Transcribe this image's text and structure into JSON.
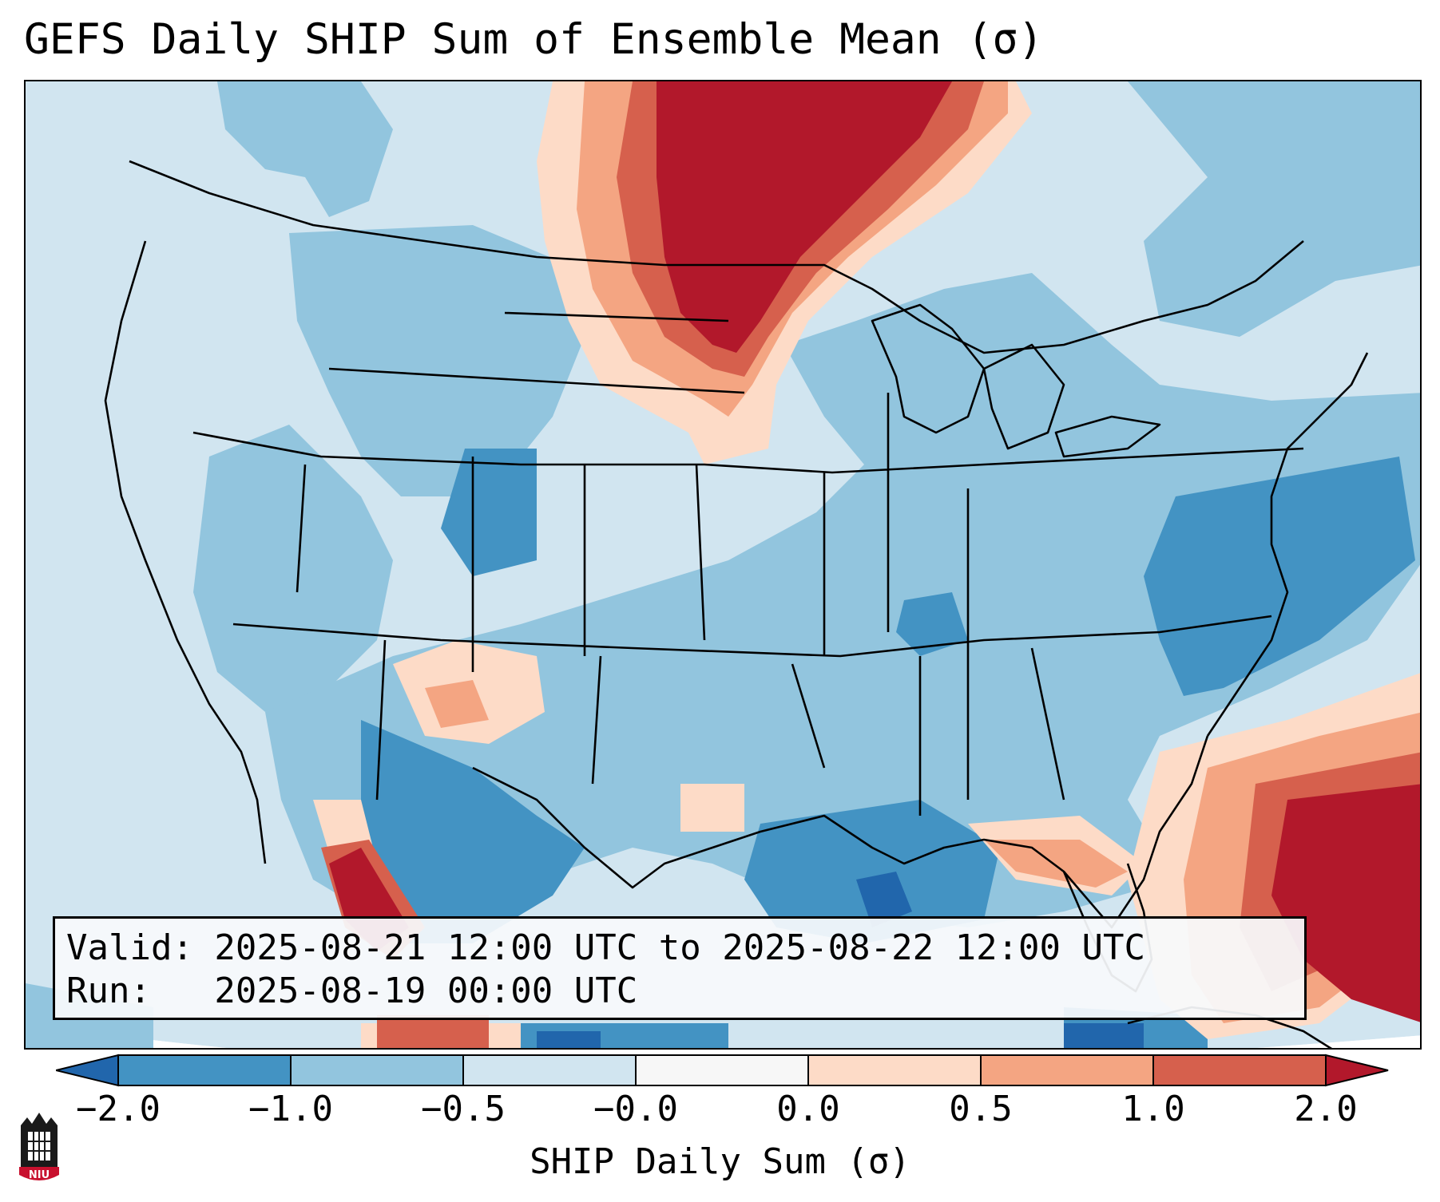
{
  "title": "GEFS Daily SHIP Sum of Ensemble Mean (σ)",
  "info": {
    "valid": "Valid: 2025-08-21 12:00 UTC to 2025-08-22 12:00 UTC",
    "run": "Run:   2025-08-19 00:00 UTC"
  },
  "colorbar": {
    "label": "SHIP Daily Sum (σ)",
    "ticks": [
      "−2.0",
      "−1.0",
      "−0.5",
      "−0.0",
      "0.0",
      "0.5",
      "1.0",
      "2.0"
    ],
    "colors": [
      "#4393c3",
      "#92c5de",
      "#d1e5f0",
      "#f7f7f7",
      "#fddbc7",
      "#f4a582",
      "#d6604d",
      "#b2182b"
    ],
    "extend_low_color": "#2166ac",
    "extend_high_color": "#b2182b"
  },
  "logo": {
    "text": "NIU"
  }
}
